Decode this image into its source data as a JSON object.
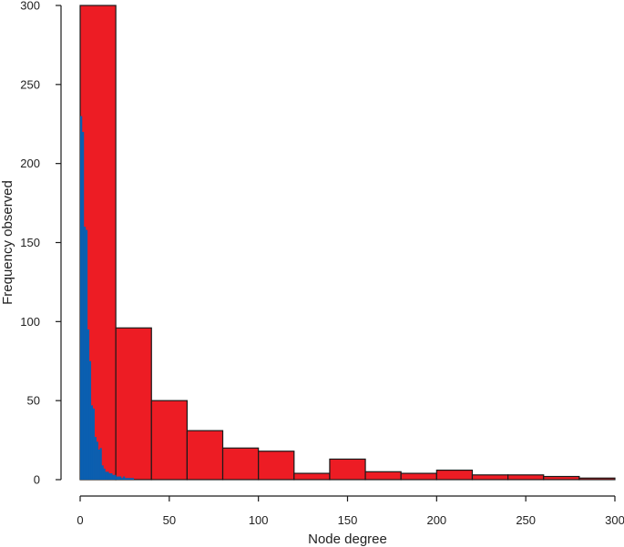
{
  "chart_data": {
    "type": "bar",
    "title": "",
    "xlabel": "Node degree",
    "ylabel": "Frequency observed",
    "xlim": [
      0,
      300
    ],
    "ylim": [
      0,
      300
    ],
    "xticks": [
      "0",
      "50",
      "100",
      "150",
      "200",
      "250",
      "300"
    ],
    "yticks": [
      "0",
      "50",
      "100",
      "150",
      "200",
      "250",
      "300"
    ],
    "grid": false,
    "series": [
      {
        "color": "#ed1c24",
        "bin_width": 20,
        "bins": [
          {
            "x0": 0,
            "x1": 20,
            "value": 300
          },
          {
            "x0": 20,
            "x1": 40,
            "value": 96
          },
          {
            "x0": 40,
            "x1": 60,
            "value": 50
          },
          {
            "x0": 60,
            "x1": 80,
            "value": 31
          },
          {
            "x0": 80,
            "x1": 100,
            "value": 20
          },
          {
            "x0": 100,
            "x1": 120,
            "value": 18
          },
          {
            "x0": 120,
            "x1": 140,
            "value": 4
          },
          {
            "x0": 140,
            "x1": 160,
            "value": 13
          },
          {
            "x0": 160,
            "x1": 180,
            "value": 5
          },
          {
            "x0": 180,
            "x1": 200,
            "value": 4
          },
          {
            "x0": 200,
            "x1": 220,
            "value": 6
          },
          {
            "x0": 220,
            "x1": 240,
            "value": 3
          },
          {
            "x0": 240,
            "x1": 260,
            "value": 3
          },
          {
            "x0": 260,
            "x1": 280,
            "value": 2
          },
          {
            "x0": 280,
            "x1": 300,
            "value": 1
          }
        ]
      },
      {
        "color": "#0b5fb0",
        "bin_width": 1,
        "bins": [
          {
            "x0": 0,
            "x1": 1,
            "value": 230
          },
          {
            "x0": 1,
            "x1": 2,
            "value": 220
          },
          {
            "x0": 2,
            "x1": 3,
            "value": 160
          },
          {
            "x0": 3,
            "x1": 4,
            "value": 158
          },
          {
            "x0": 4,
            "x1": 5,
            "value": 95
          },
          {
            "x0": 5,
            "x1": 6,
            "value": 75
          },
          {
            "x0": 6,
            "x1": 7,
            "value": 47
          },
          {
            "x0": 7,
            "x1": 8,
            "value": 45
          },
          {
            "x0": 8,
            "x1": 9,
            "value": 27
          },
          {
            "x0": 9,
            "x1": 10,
            "value": 24
          },
          {
            "x0": 10,
            "x1": 11,
            "value": 19
          },
          {
            "x0": 11,
            "x1": 12,
            "value": 20
          },
          {
            "x0": 12,
            "x1": 13,
            "value": 9
          },
          {
            "x0": 13,
            "x1": 14,
            "value": 7
          },
          {
            "x0": 14,
            "x1": 15,
            "value": 5
          },
          {
            "x0": 15,
            "x1": 16,
            "value": 5
          },
          {
            "x0": 16,
            "x1": 17,
            "value": 4
          },
          {
            "x0": 17,
            "x1": 18,
            "value": 4
          },
          {
            "x0": 18,
            "x1": 19,
            "value": 3
          },
          {
            "x0": 19,
            "x1": 20,
            "value": 3
          },
          {
            "x0": 20,
            "x1": 21,
            "value": 2
          },
          {
            "x0": 21,
            "x1": 22,
            "value": 2
          },
          {
            "x0": 22,
            "x1": 23,
            "value": 2
          },
          {
            "x0": 23,
            "x1": 24,
            "value": 1
          },
          {
            "x0": 24,
            "x1": 25,
            "value": 2
          },
          {
            "x0": 25,
            "x1": 26,
            "value": 1
          },
          {
            "x0": 26,
            "x1": 27,
            "value": 1
          },
          {
            "x0": 27,
            "x1": 28,
            "value": 1
          },
          {
            "x0": 28,
            "x1": 29,
            "value": 1
          },
          {
            "x0": 29,
            "x1": 30,
            "value": 1
          }
        ]
      }
    ]
  }
}
